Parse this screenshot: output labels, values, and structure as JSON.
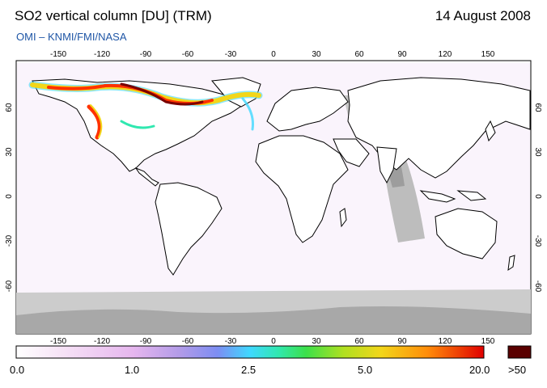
{
  "header": {
    "title": "SO2 vertical column [DU] (TRM)",
    "date": "14 August 2008",
    "source": "OMI  –  KNMI/FMI/NASA"
  },
  "map": {
    "longitude_ticks": [
      "-150",
      "-120",
      "-90",
      "-60",
      "-30",
      "0",
      "30",
      "60",
      "90",
      "120",
      "150"
    ],
    "latitude_ticks": [
      "60",
      "30",
      "0",
      "-30",
      "-60"
    ]
  },
  "colorbar": {
    "labels": [
      "0.0",
      "1.0",
      "2.5",
      "5.0",
      "20.0"
    ],
    "overflow_label": ">50",
    "colors": [
      "#ffffff",
      "#f4d8f4",
      "#e2a6ec",
      "#b496e6",
      "#7f8cf0",
      "#3fd2ff",
      "#30e8b0",
      "#38e04a",
      "#b0e020",
      "#f0d81a",
      "#ff9a0a",
      "#ff3200",
      "#e00000"
    ],
    "overflow_color": "#5a0000"
  }
}
